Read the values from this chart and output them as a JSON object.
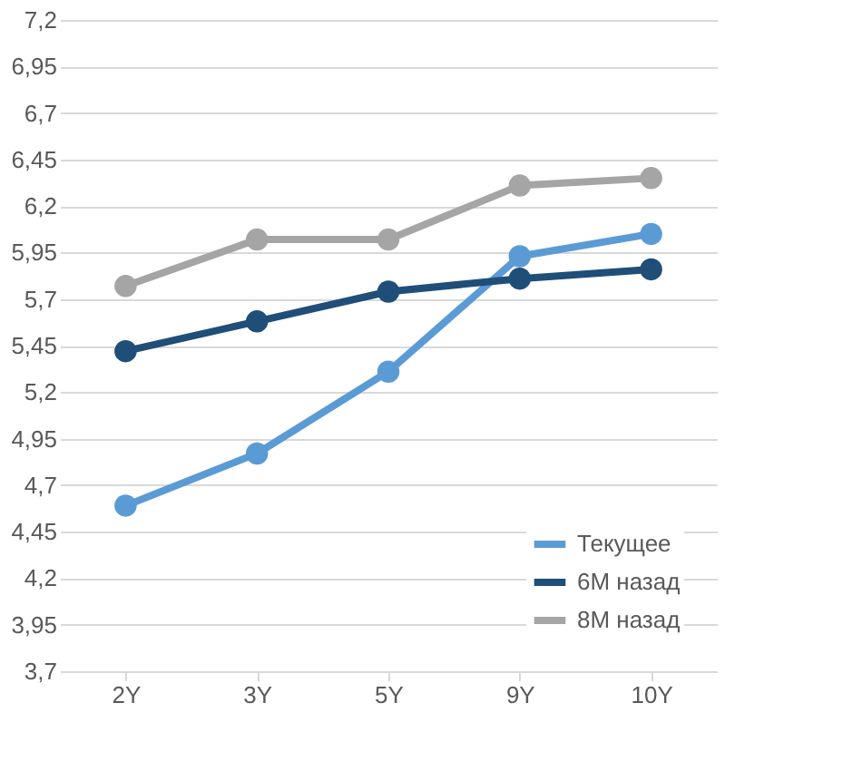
{
  "chart_data": {
    "type": "line",
    "categories": [
      "2Y",
      "3Y",
      "5Y",
      "9Y",
      "10Y"
    ],
    "series": [
      {
        "name": "Текущее",
        "color": "#5b9bd5",
        "values": [
          4.59,
          4.87,
          5.31,
          5.93,
          6.05
        ]
      },
      {
        "name": "6M назад",
        "color": "#1f4e79",
        "values": [
          5.42,
          5.58,
          5.74,
          5.81,
          5.86
        ]
      },
      {
        "name": "8M назад",
        "color": "#a5a5a5",
        "values": [
          5.77,
          6.02,
          6.02,
          6.31,
          6.35
        ]
      }
    ],
    "ylim": [
      3.7,
      7.2
    ],
    "yticks": [
      {
        "value": 3.7,
        "label": "3,7"
      },
      {
        "value": 3.95,
        "label": "3,95"
      },
      {
        "value": 4.2,
        "label": "4,2"
      },
      {
        "value": 4.45,
        "label": "4,45"
      },
      {
        "value": 4.7,
        "label": "4,7"
      },
      {
        "value": 4.95,
        "label": "4,95"
      },
      {
        "value": 5.2,
        "label": "5,2"
      },
      {
        "value": 5.45,
        "label": "5,45"
      },
      {
        "value": 5.7,
        "label": "5,7"
      },
      {
        "value": 5.95,
        "label": "5,95"
      },
      {
        "value": 6.2,
        "label": "6,2"
      },
      {
        "value": 6.45,
        "label": "6,45"
      },
      {
        "value": 6.7,
        "label": "6,7"
      },
      {
        "value": 6.95,
        "label": "6,95"
      },
      {
        "value": 7.2,
        "label": "7,2"
      }
    ],
    "grid": "y",
    "legend": "bottom right",
    "marker": "circle",
    "line_style": "solid"
  }
}
